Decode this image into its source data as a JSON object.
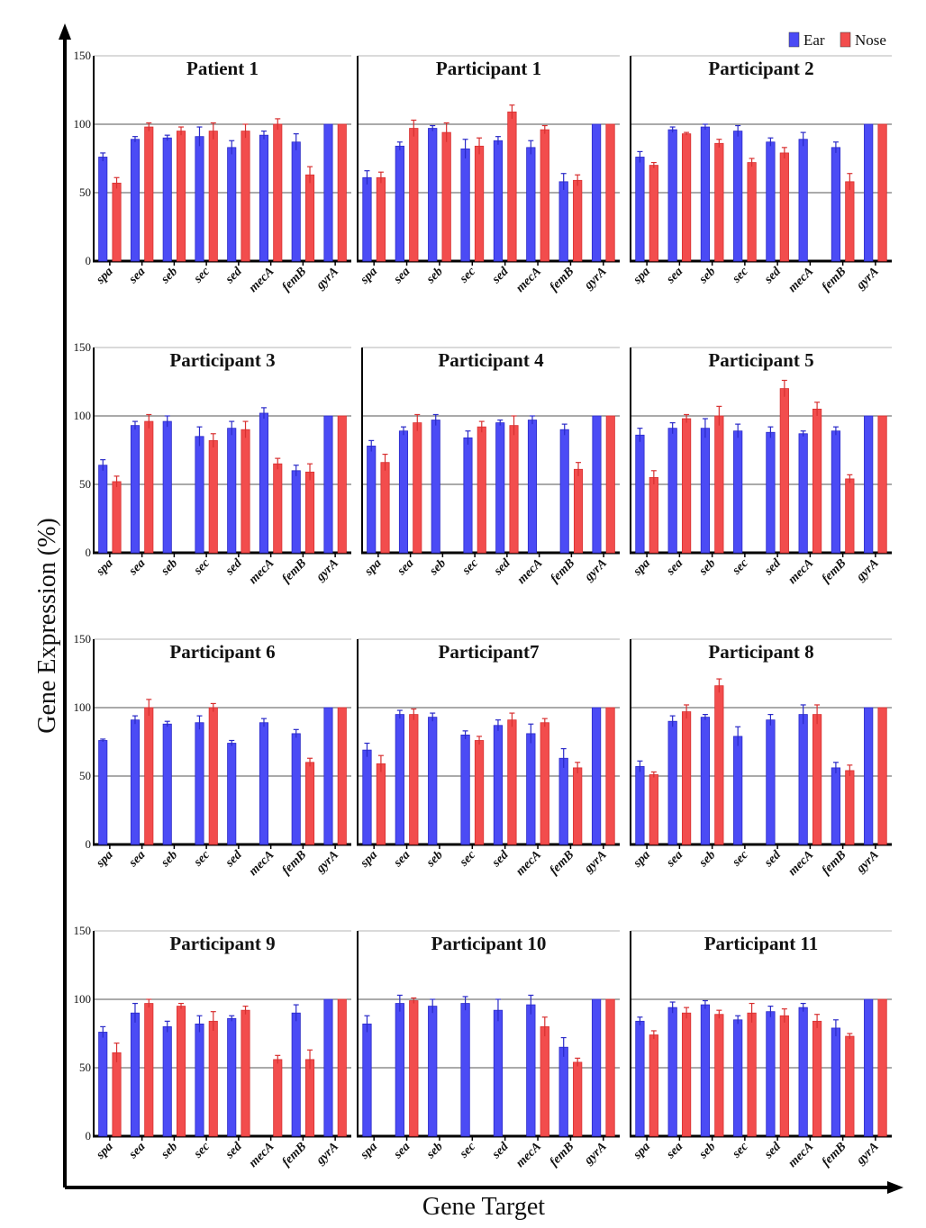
{
  "chart_data": {
    "type": "bar",
    "xlabel": "Gene Target",
    "ylabel": "Gene Expression (%)",
    "ylim": [
      0,
      150
    ],
    "yticks": [
      0,
      50,
      100,
      150
    ],
    "grid": true,
    "legend": {
      "placement": "top-right",
      "entries": [
        {
          "name": "Ear",
          "color": "#4b4bf5"
        },
        {
          "name": "Nose",
          "color": "#f24d4d"
        }
      ]
    },
    "categories": [
      "spa",
      "sea",
      "seb",
      "sec",
      "sed",
      "mecA",
      "femB",
      "gyrA"
    ],
    "panels": [
      {
        "title": "Patient 1",
        "series": [
          {
            "name": "Ear",
            "values": [
              76,
              89,
              90,
              91,
              83,
              92,
              87,
              100
            ]
          },
          {
            "name": "Nose",
            "values": [
              57,
              98,
              95,
              95,
              95,
              100,
              63,
              100
            ]
          }
        ]
      },
      {
        "title": "Participant 1",
        "series": [
          {
            "name": "Ear",
            "values": [
              61,
              84,
              97,
              82,
              88,
              83,
              58,
              100
            ]
          },
          {
            "name": "Nose",
            "values": [
              61,
              97,
              94,
              84,
              109,
              96,
              59,
              100
            ]
          }
        ]
      },
      {
        "title": "Participant 2",
        "series": [
          {
            "name": "Ear",
            "values": [
              76,
              96,
              98,
              95,
              87,
              89,
              83,
              100
            ]
          },
          {
            "name": "Nose",
            "values": [
              70,
              93,
              86,
              72,
              79,
              null,
              58,
              100
            ]
          }
        ]
      },
      {
        "title": "Participant 3",
        "series": [
          {
            "name": "Ear",
            "values": [
              64,
              93,
              96,
              85,
              91,
              102,
              60,
              100
            ]
          },
          {
            "name": "Nose",
            "values": [
              52,
              96,
              null,
              82,
              90,
              65,
              59,
              100
            ]
          }
        ]
      },
      {
        "title": "Participant 4",
        "series": [
          {
            "name": "Ear",
            "values": [
              78,
              89,
              97,
              84,
              95,
              97,
              90,
              100
            ]
          },
          {
            "name": "Nose",
            "values": [
              66,
              95,
              null,
              92,
              93,
              null,
              61,
              100
            ]
          }
        ]
      },
      {
        "title": "Participant 5",
        "series": [
          {
            "name": "Ear",
            "values": [
              86,
              91,
              91,
              89,
              88,
              87,
              89,
              100
            ]
          },
          {
            "name": "Nose",
            "values": [
              55,
              98,
              100,
              null,
              120,
              105,
              54,
              100
            ]
          }
        ]
      },
      {
        "title": "Participant 6",
        "series": [
          {
            "name": "Ear",
            "values": [
              76,
              91,
              88,
              89,
              74,
              89,
              81,
              100
            ]
          },
          {
            "name": "Nose",
            "values": [
              null,
              100,
              null,
              100,
              null,
              null,
              60,
              100
            ]
          }
        ]
      },
      {
        "title": "Participant7",
        "series": [
          {
            "name": "Ear",
            "values": [
              69,
              95,
              93,
              80,
              87,
              81,
              63,
              100
            ]
          },
          {
            "name": "Nose",
            "values": [
              59,
              95,
              null,
              76,
              91,
              89,
              56,
              100
            ]
          }
        ]
      },
      {
        "title": "Participant 8",
        "series": [
          {
            "name": "Ear",
            "values": [
              57,
              90,
              93,
              79,
              91,
              95,
              56,
              100
            ]
          },
          {
            "name": "Nose",
            "values": [
              51,
              97,
              116,
              null,
              null,
              95,
              54,
              100
            ]
          }
        ]
      },
      {
        "title": "Participant 9",
        "series": [
          {
            "name": "Ear",
            "values": [
              76,
              90,
              80,
              82,
              86,
              null,
              90,
              100
            ]
          },
          {
            "name": "Nose",
            "values": [
              61,
              97,
              95,
              84,
              92,
              56,
              56,
              100
            ]
          }
        ]
      },
      {
        "title": "Participant 10",
        "series": [
          {
            "name": "Ear",
            "values": [
              82,
              97,
              95,
              97,
              92,
              96,
              65,
              100
            ]
          },
          {
            "name": "Nose",
            "values": [
              null,
              99,
              null,
              null,
              null,
              80,
              54,
              100
            ]
          }
        ]
      },
      {
        "title": "Participant 11",
        "series": [
          {
            "name": "Ear",
            "values": [
              84,
              94,
              96,
              85,
              91,
              94,
              79,
              100
            ]
          },
          {
            "name": "Nose",
            "values": [
              74,
              90,
              89,
              90,
              88,
              84,
              73,
              100
            ]
          }
        ]
      }
    ],
    "error_bars": {
      "Patient 1": {
        "Ear": [
          3,
          2,
          2,
          7,
          5,
          3,
          6,
          0
        ],
        "Nose": [
          4,
          3,
          3,
          6,
          5,
          4,
          6,
          0
        ]
      },
      "Participant 1": {
        "Ear": [
          5,
          3,
          2,
          7,
          3,
          5,
          6,
          0
        ],
        "Nose": [
          4,
          6,
          7,
          6,
          5,
          3,
          4,
          0
        ]
      },
      "Participant 2": {
        "Ear": [
          4,
          2,
          2,
          4,
          3,
          5,
          4,
          0
        ],
        "Nose": [
          2,
          1,
          3,
          3,
          4,
          0,
          6,
          0
        ]
      },
      "Participant 3": {
        "Ear": [
          4,
          3,
          4,
          7,
          5,
          4,
          4,
          0
        ],
        "Nose": [
          4,
          5,
          0,
          5,
          6,
          4,
          6,
          0
        ]
      },
      "Participant 4": {
        "Ear": [
          4,
          3,
          4,
          5,
          2,
          3,
          4,
          0
        ],
        "Nose": [
          6,
          6,
          0,
          4,
          7,
          0,
          5,
          0
        ]
      },
      "Participant 5": {
        "Ear": [
          5,
          4,
          7,
          5,
          4,
          2,
          3,
          0
        ],
        "Nose": [
          5,
          3,
          7,
          0,
          6,
          5,
          3,
          0
        ]
      },
      "Participant 6": {
        "Ear": [
          1,
          3,
          2,
          5,
          2,
          3,
          3,
          0
        ],
        "Nose": [
          0,
          6,
          0,
          3,
          0,
          0,
          3,
          0
        ]
      },
      "Participant7": {
        "Ear": [
          5,
          3,
          3,
          3,
          4,
          7,
          7,
          0
        ],
        "Nose": [
          6,
          4,
          0,
          3,
          5,
          3,
          4,
          0
        ]
      },
      "Participant 8": {
        "Ear": [
          4,
          4,
          2,
          7,
          4,
          7,
          4,
          0
        ],
        "Nose": [
          2,
          5,
          5,
          0,
          0,
          7,
          4,
          0
        ]
      },
      "Participant 9": {
        "Ear": [
          4,
          7,
          4,
          6,
          2,
          0,
          6,
          0
        ],
        "Nose": [
          7,
          3,
          2,
          7,
          3,
          3,
          7,
          0
        ]
      },
      "Participant 10": {
        "Ear": [
          6,
          6,
          5,
          5,
          8,
          7,
          7,
          0
        ],
        "Nose": [
          0,
          2,
          0,
          0,
          0,
          7,
          3,
          0
        ]
      },
      "Participant 11": {
        "Ear": [
          3,
          4,
          3,
          3,
          4,
          3,
          6,
          0
        ],
        "Nose": [
          3,
          4,
          3,
          7,
          5,
          5,
          2,
          0
        ]
      }
    }
  }
}
